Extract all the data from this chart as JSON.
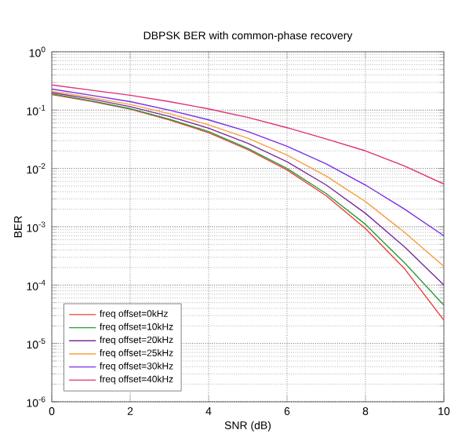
{
  "chart_data": {
    "type": "line",
    "title": "DBPSK BER with common-phase recovery",
    "xlabel": "SNR (dB)",
    "ylabel": "BER",
    "x": [
      0,
      1,
      2,
      3,
      4,
      5,
      6,
      7,
      8,
      9,
      10
    ],
    "series": [
      {
        "name": "freq offset=0kHz",
        "color": "#e8413c",
        "values": [
          0.184,
          0.142,
          0.104,
          0.068,
          0.041,
          0.021,
          0.0094,
          0.0034,
          0.00093,
          0.00019,
          2.5e-05
        ]
      },
      {
        "name": "freq offset=10kHz",
        "color": "#2e9a3a",
        "values": [
          0.19,
          0.145,
          0.106,
          0.07,
          0.043,
          0.022,
          0.01,
          0.0037,
          0.0011,
          0.00024,
          4.5e-05
        ]
      },
      {
        "name": "freq offset=20kHz",
        "color": "#7a2c9a",
        "values": [
          0.2,
          0.155,
          0.115,
          0.078,
          0.049,
          0.027,
          0.013,
          0.0052,
          0.0017,
          0.00045,
          0.0001
        ]
      },
      {
        "name": "freq offset=25kHz",
        "color": "#f5a040",
        "values": [
          0.21,
          0.165,
          0.125,
          0.087,
          0.056,
          0.033,
          0.017,
          0.0074,
          0.0027,
          0.0008,
          0.00021
        ]
      },
      {
        "name": "freq offset=30kHz",
        "color": "#7b2ee8",
        "values": [
          0.23,
          0.18,
          0.14,
          0.1,
          0.068,
          0.043,
          0.024,
          0.012,
          0.0052,
          0.002,
          0.0007
        ]
      },
      {
        "name": "freq offset=40kHz",
        "color": "#e0307a",
        "values": [
          0.27,
          0.22,
          0.18,
          0.14,
          0.105,
          0.075,
          0.05,
          0.032,
          0.02,
          0.011,
          0.0054
        ]
      }
    ],
    "xlim": [
      0,
      10
    ],
    "ylim": [
      1e-06,
      1
    ],
    "xticks": [
      0,
      2,
      4,
      6,
      8,
      10
    ],
    "yticks": [
      {
        "value": 1e-06,
        "label": "10$^{-6}$"
      },
      {
        "value": 1e-05,
        "label": "10$^{-5}$"
      },
      {
        "value": 0.0001,
        "label": "10$^{-4}$"
      },
      {
        "value": 0.001,
        "label": "10$^{-3}$"
      },
      {
        "value": 0.01,
        "label": "10$^{-2}$"
      },
      {
        "value": 0.1,
        "label": "10$^{-1}$"
      },
      {
        "value": 1,
        "label": "10$^{0}$"
      }
    ],
    "log": "y",
    "grid": true,
    "legend": "bottom left",
    "marker": "none",
    "line_style": "solid"
  }
}
